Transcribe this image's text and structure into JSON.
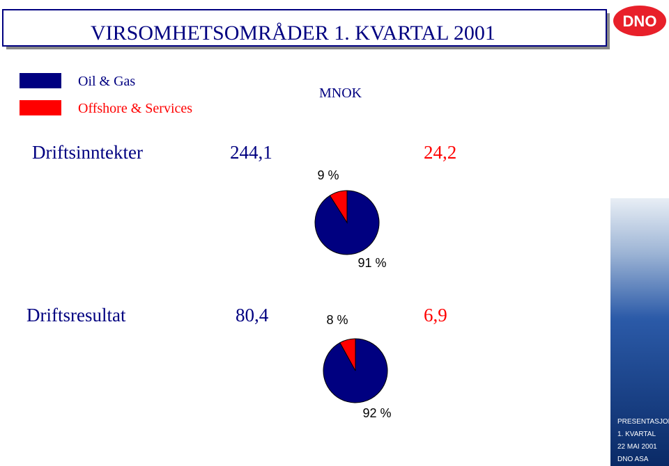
{
  "title": "VIRSOMHETSOMRÅDER 1. KVARTAL 2001",
  "logo": "DNO",
  "legend": [
    {
      "name": "Oil & Gas",
      "color": "#000080"
    },
    {
      "name": "Offshore & Services",
      "color": "#ff0000"
    }
  ],
  "unit": "MNOK",
  "rows": [
    {
      "label": "Driftsinntekter",
      "oil_gas": "244,1",
      "offshore": "24,2"
    },
    {
      "label": "Driftsresultat",
      "oil_gas": "80,4",
      "offshore": "6,9"
    }
  ],
  "chart_data": [
    {
      "type": "pie",
      "values": [
        91,
        9
      ],
      "value_labels": [
        "91 %",
        "9 %"
      ]
    },
    {
      "type": "pie",
      "values": [
        92,
        8
      ],
      "value_labels": [
        "92 %",
        "8 %"
      ]
    }
  ],
  "footer": [
    "PRESENTASJON",
    "1. KVARTAL",
    "22 MAI 2001",
    "DNO ASA"
  ]
}
